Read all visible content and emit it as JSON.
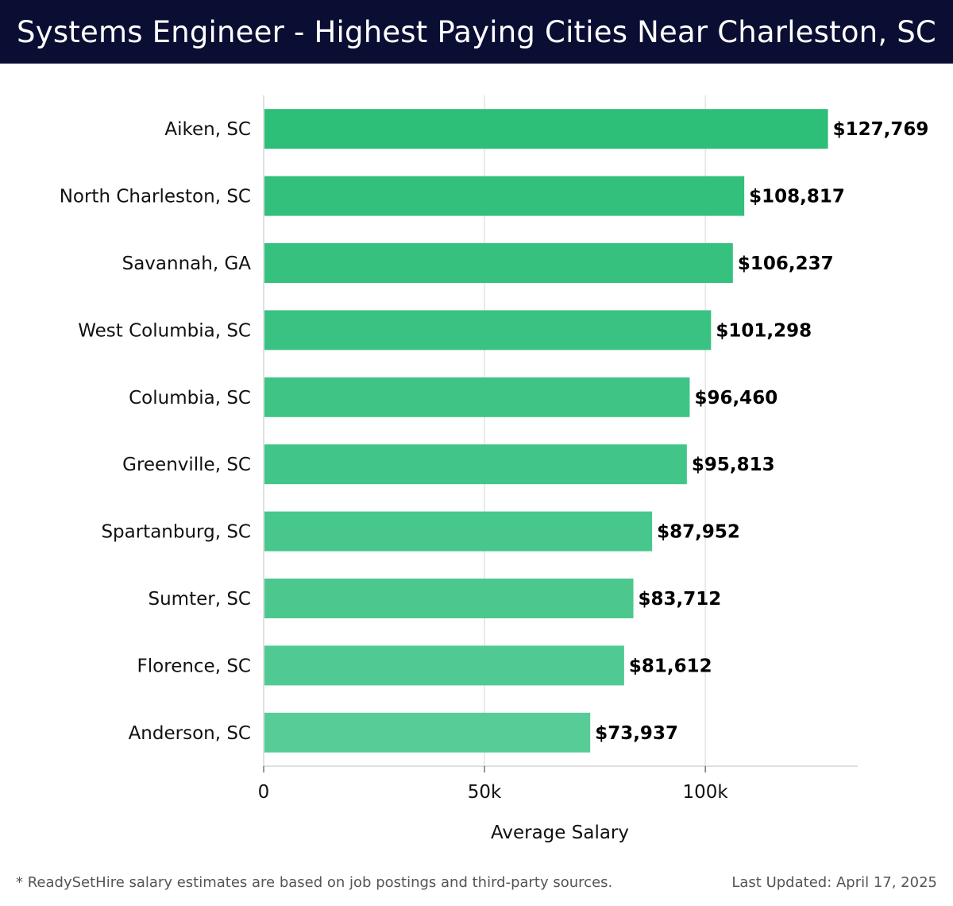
{
  "header": {
    "title": "Systems Engineer - Highest Paying Cities Near Charleston, SC"
  },
  "chart_data": {
    "type": "bar",
    "orientation": "horizontal",
    "title": "Systems Engineer - Highest Paying Cities Near Charleston, SC",
    "categories": [
      "Aiken, SC",
      "North Charleston, SC",
      "Savannah, GA",
      "West Columbia, SC",
      "Columbia, SC",
      "Greenville, SC",
      "Spartanburg, SC",
      "Sumter, SC",
      "Florence, SC",
      "Anderson, SC"
    ],
    "values": [
      127769,
      108817,
      106237,
      101298,
      96460,
      95813,
      87952,
      83712,
      81612,
      73937
    ],
    "value_labels": [
      "$127,769",
      "$108,817",
      "$106,237",
      "$101,298",
      "$96,460",
      "$95,813",
      "$87,952",
      "$83,712",
      "$81,612",
      "$73,937"
    ],
    "bar_colors": [
      "#2dbe78",
      "#33c07c",
      "#36c17e",
      "#3ac282",
      "#3fc485",
      "#42c588",
      "#48c78c",
      "#4cc88f",
      "#50ca92",
      "#58cc97"
    ],
    "xlabel": "Average Salary",
    "xticks": [
      0,
      50000,
      100000
    ],
    "xtick_labels": [
      "0",
      "50k",
      "100k"
    ],
    "xlim": [
      0,
      134500
    ],
    "grid": "vertical"
  },
  "footer": {
    "note": "* ReadySetHire salary estimates are based on job postings and third-party sources.",
    "updated": "Last Updated: April 17, 2025"
  },
  "colors": {
    "title_bar": "#0b0e33",
    "gridline": "#dddddd"
  }
}
